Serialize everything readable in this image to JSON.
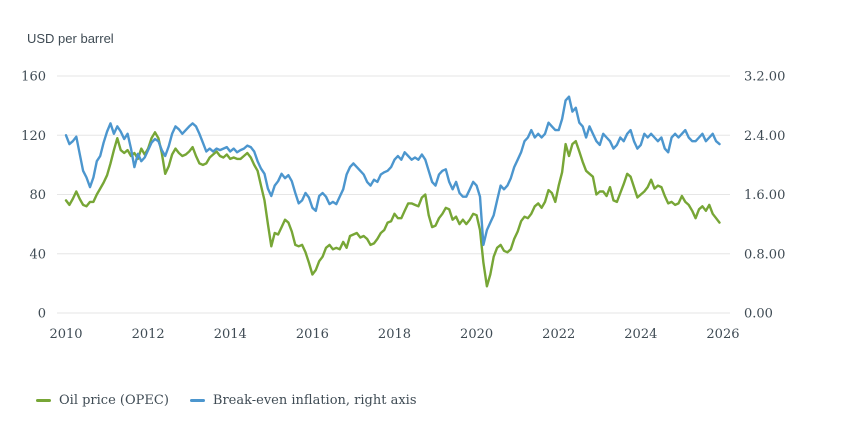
{
  "chart_data": {
    "type": "line",
    "title": "USD per barrel",
    "grid": "horizontal-only",
    "legend_position": "bottom-left",
    "x_start_year": 2010,
    "points_per_year": 12,
    "x_ticks": [
      "2010",
      "2012",
      "2014",
      "2016",
      "2018",
      "2020",
      "2022",
      "2024",
      "2026"
    ],
    "left_axis": {
      "range": [
        0,
        160
      ],
      "tick_values": [
        160,
        120,
        80,
        40,
        0
      ],
      "tick_labels": [
        "160",
        "120",
        "80",
        "40",
        "0"
      ]
    },
    "right_axis": {
      "range": [
        0,
        3.2
      ],
      "tick_values": [
        3.2,
        2.4,
        1.6,
        0.8,
        0
      ],
      "tick_labels": [
        "3.2.00",
        "2.4.00",
        "1.6.00",
        "0.8.00",
        "0.00"
      ]
    },
    "colors": {
      "oil_line": "#77a636",
      "breakeven_line": "#4c96ce",
      "grid": "#e6e6e6",
      "text": "#3f4b54"
    },
    "series": [
      {
        "name": "Oil price (OPEC)",
        "axis": "left",
        "color": "#77a636",
        "values": [
          76,
          73,
          77,
          82,
          77,
          73,
          72,
          75,
          75,
          80,
          84,
          88,
          93,
          101,
          110,
          118,
          110,
          108,
          110,
          106,
          108,
          104,
          111,
          107,
          111,
          118,
          122,
          118,
          108,
          94,
          99,
          107,
          111,
          108,
          106,
          107,
          109,
          112,
          106,
          101,
          100,
          101,
          105,
          107,
          109,
          106,
          105,
          107,
          104,
          105,
          104,
          104,
          106,
          108,
          105,
          100,
          96,
          86,
          76,
          60,
          45,
          54,
          53,
          58,
          63,
          61,
          55,
          46,
          45,
          46,
          41,
          34,
          26,
          29,
          35,
          38,
          44,
          46,
          43,
          44,
          43,
          48,
          44,
          52,
          53,
          54,
          51,
          52,
          50,
          46,
          47,
          50,
          54,
          56,
          61,
          62,
          67,
          64,
          64,
          69,
          74,
          74,
          73,
          72,
          78,
          80,
          66,
          58,
          59,
          64,
          67,
          71,
          70,
          63,
          65,
          60,
          63,
          60,
          63,
          67,
          66,
          56,
          34,
          18,
          26,
          38,
          44,
          46,
          42,
          41,
          43,
          50,
          55,
          62,
          65,
          64,
          67,
          72,
          74,
          71,
          75,
          83,
          81,
          75,
          86,
          95,
          114,
          106,
          114,
          116,
          109,
          102,
          96,
          94,
          92,
          80,
          82,
          82,
          79,
          85,
          76,
          75,
          81,
          87,
          94,
          92,
          85,
          78,
          80,
          82,
          85,
          90,
          84,
          86,
          85,
          79,
          74,
          75,
          73,
          74,
          79,
          75,
          73,
          69,
          64,
          70,
          72,
          69,
          73,
          67,
          64,
          61
        ]
      },
      {
        "name": "Break-even inflation, right axis",
        "axis": "right",
        "color": "#4c96ce",
        "values": [
          2.4,
          2.28,
          2.32,
          2.38,
          2.15,
          1.92,
          1.83,
          1.7,
          1.83,
          2.05,
          2.12,
          2.3,
          2.45,
          2.56,
          2.42,
          2.52,
          2.45,
          2.35,
          2.42,
          2.22,
          1.97,
          2.15,
          2.05,
          2.1,
          2.2,
          2.3,
          2.35,
          2.32,
          2.2,
          2.12,
          2.25,
          2.42,
          2.52,
          2.48,
          2.42,
          2.47,
          2.52,
          2.56,
          2.52,
          2.42,
          2.3,
          2.18,
          2.22,
          2.18,
          2.22,
          2.2,
          2.22,
          2.24,
          2.18,
          2.22,
          2.17,
          2.2,
          2.22,
          2.26,
          2.24,
          2.18,
          2.05,
          1.95,
          1.88,
          1.68,
          1.58,
          1.72,
          1.78,
          1.88,
          1.82,
          1.86,
          1.78,
          1.62,
          1.48,
          1.52,
          1.62,
          1.56,
          1.42,
          1.38,
          1.58,
          1.62,
          1.57,
          1.47,
          1.5,
          1.47,
          1.57,
          1.67,
          1.87,
          1.97,
          2.02,
          1.97,
          1.92,
          1.87,
          1.77,
          1.72,
          1.8,
          1.77,
          1.87,
          1.9,
          1.92,
          1.97,
          2.07,
          2.12,
          2.07,
          2.17,
          2.12,
          2.07,
          2.1,
          2.07,
          2.14,
          2.07,
          1.92,
          1.77,
          1.72,
          1.87,
          1.92,
          1.94,
          1.77,
          1.67,
          1.77,
          1.62,
          1.57,
          1.57,
          1.67,
          1.77,
          1.72,
          1.57,
          0.92,
          1.12,
          1.22,
          1.32,
          1.52,
          1.72,
          1.67,
          1.72,
          1.82,
          1.97,
          2.07,
          2.17,
          2.32,
          2.37,
          2.47,
          2.37,
          2.42,
          2.37,
          2.42,
          2.57,
          2.52,
          2.47,
          2.47,
          2.62,
          2.87,
          2.92,
          2.72,
          2.77,
          2.57,
          2.52,
          2.37,
          2.52,
          2.42,
          2.32,
          2.27,
          2.42,
          2.37,
          2.32,
          2.22,
          2.27,
          2.37,
          2.32,
          2.42,
          2.47,
          2.32,
          2.22,
          2.27,
          2.42,
          2.37,
          2.42,
          2.37,
          2.32,
          2.37,
          2.22,
          2.17,
          2.37,
          2.42,
          2.37,
          2.42,
          2.47,
          2.37,
          2.32,
          2.32,
          2.37,
          2.42,
          2.32,
          2.37,
          2.42,
          2.32,
          2.28
        ]
      }
    ]
  }
}
